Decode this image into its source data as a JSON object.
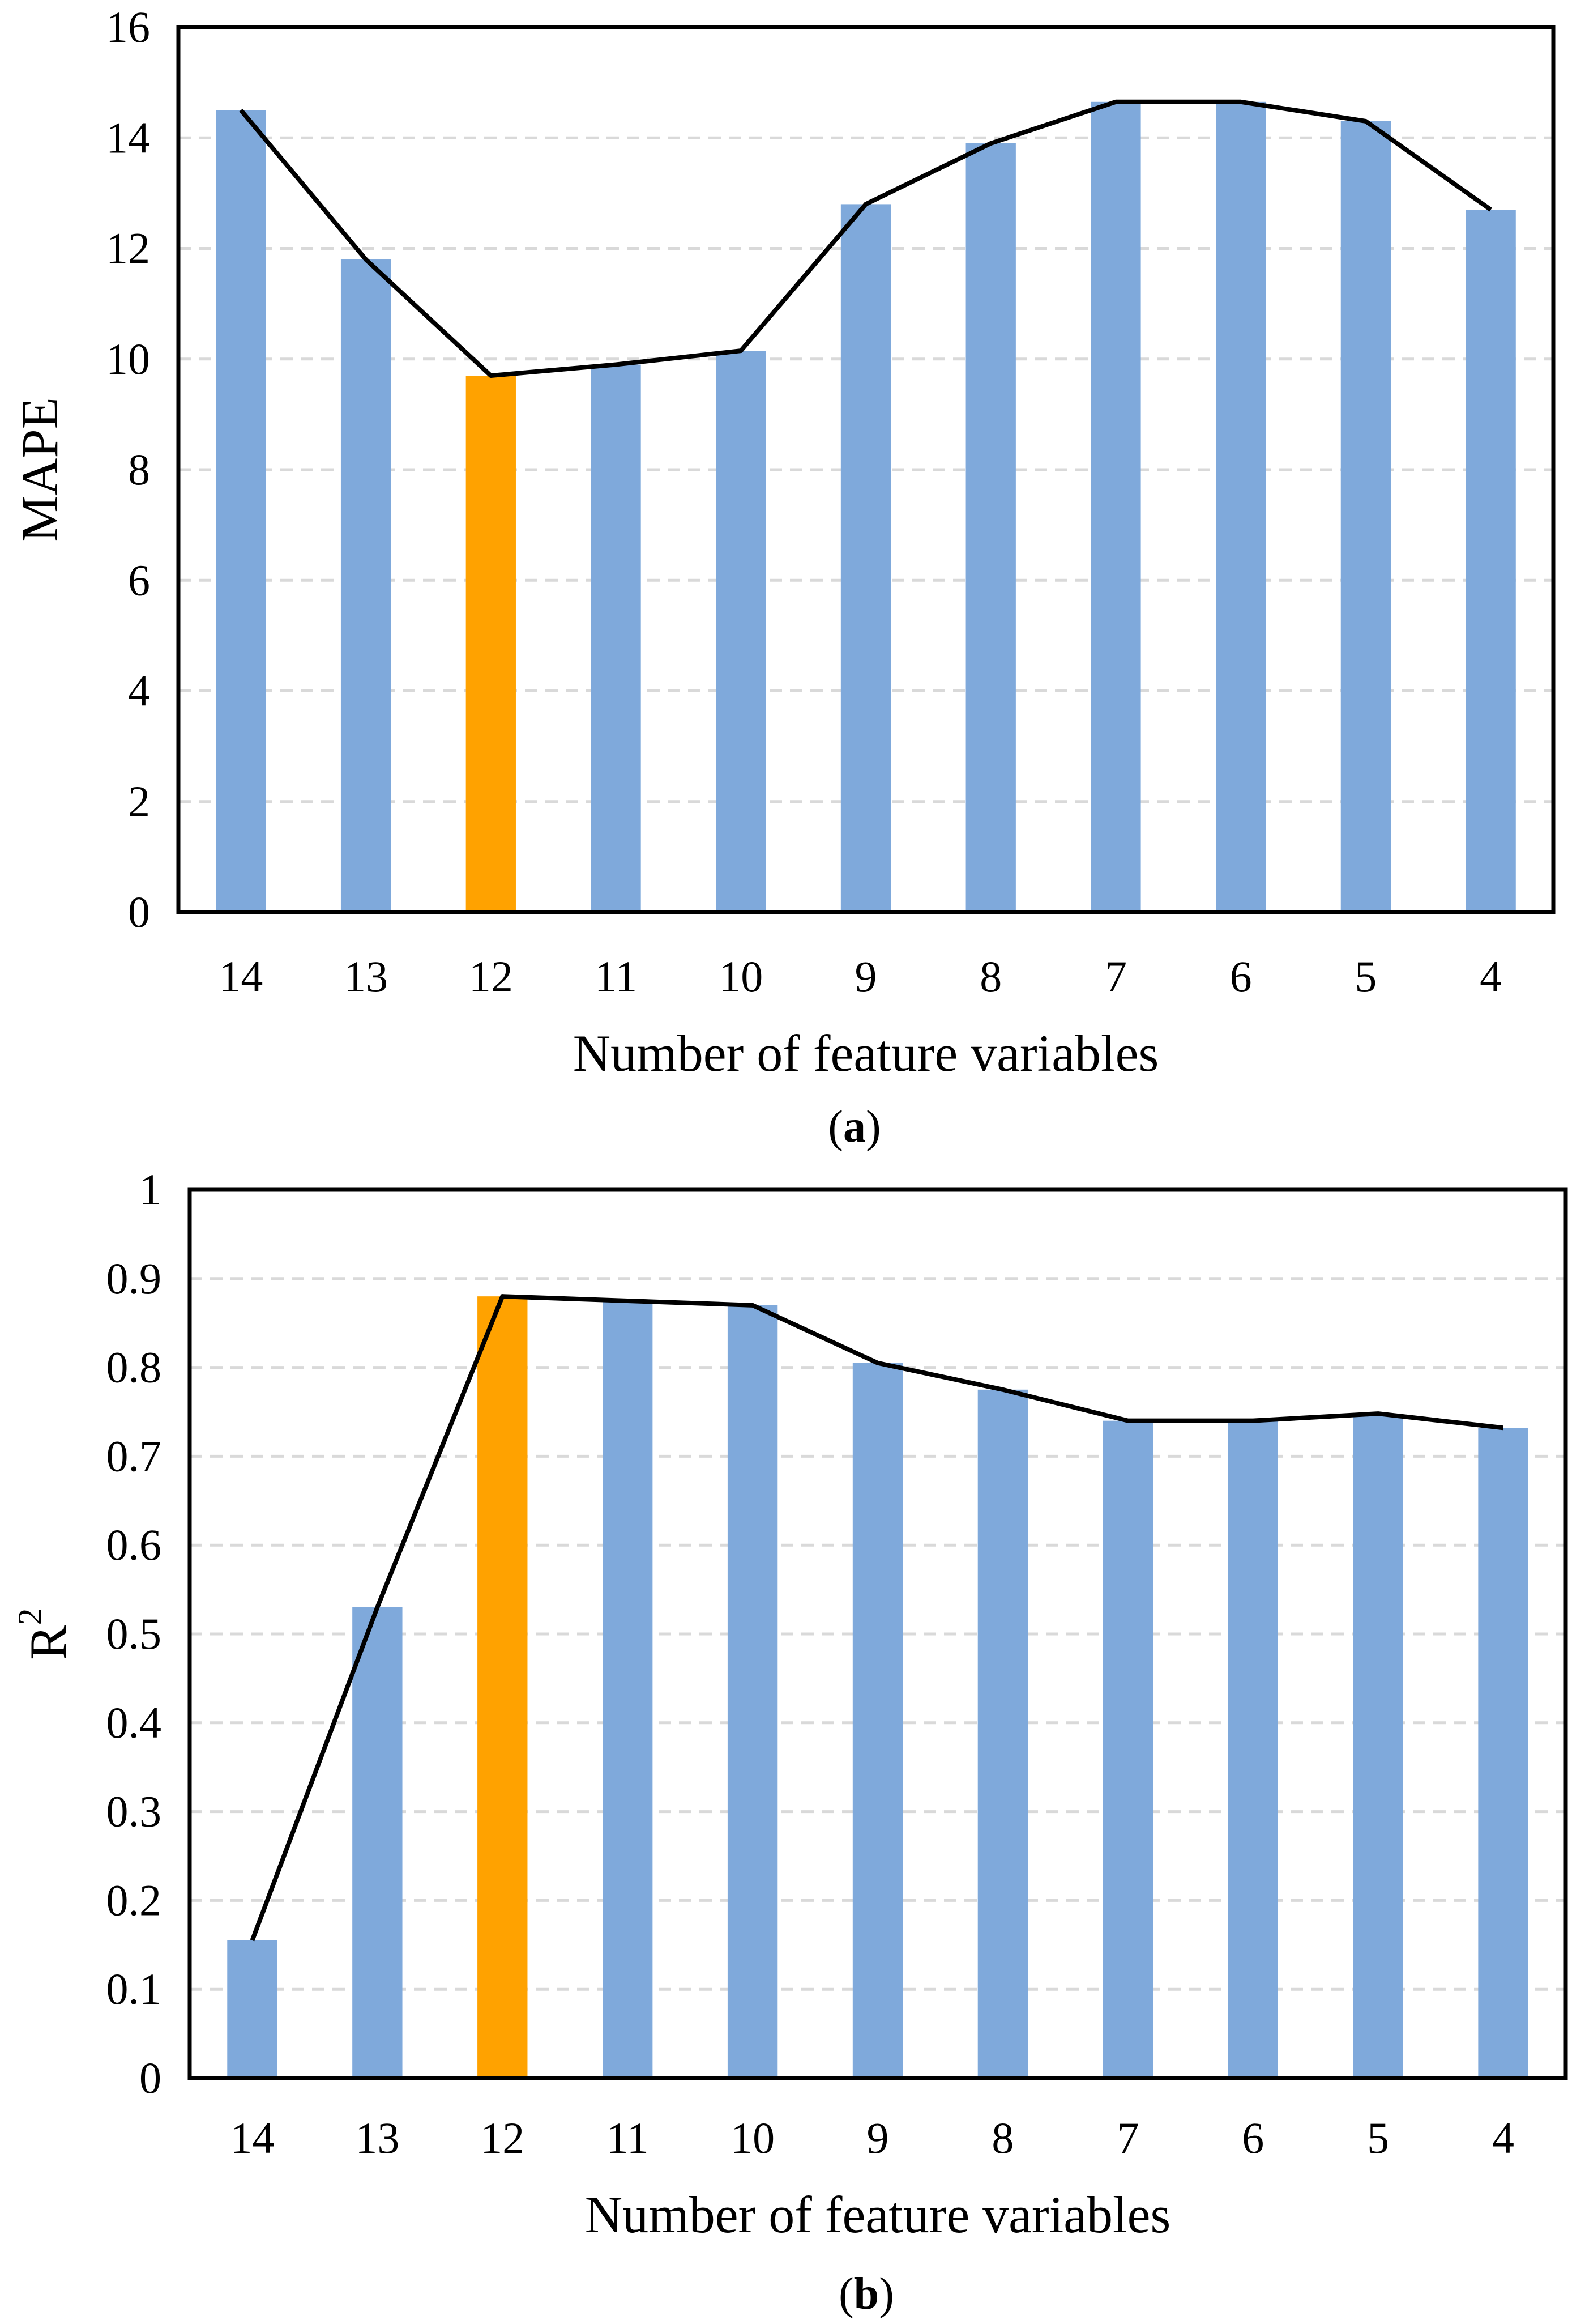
{
  "colors": {
    "bar": "#7FA9DB",
    "highlight": "#FFA200",
    "line": "#000000",
    "gridline": "#D9D9D9",
    "frame": "#000000"
  },
  "chart_data": [
    {
      "id": "a",
      "type": "bar",
      "overlay": "line",
      "caption": {
        "open": "(",
        "letter": "a",
        "close": ")"
      },
      "xlabel": "Number of feature variables",
      "ylabel": "MAPE",
      "ylim": [
        0,
        16
      ],
      "yticks": [
        0,
        2,
        4,
        6,
        8,
        10,
        12,
        14,
        16
      ],
      "ytick_labels": [
        "0",
        "2",
        "4",
        "6",
        "8",
        "10",
        "12",
        "14",
        "16"
      ],
      "categories": [
        "14",
        "13",
        "12",
        "11",
        "10",
        "9",
        "8",
        "7",
        "6",
        "5",
        "4"
      ],
      "values": [
        14.5,
        11.8,
        9.7,
        9.9,
        10.15,
        12.8,
        13.9,
        14.65,
        14.65,
        14.3,
        12.7
      ],
      "line_values": [
        14.5,
        11.8,
        9.7,
        9.9,
        10.15,
        12.8,
        13.9,
        14.65,
        14.65,
        14.3,
        12.7
      ],
      "highlight_category": "12",
      "grid": true
    },
    {
      "id": "b",
      "type": "bar",
      "overlay": "line",
      "caption": {
        "open": "(",
        "letter": "b",
        "close": ")"
      },
      "xlabel": "Number of feature variables",
      "ylabel": "R",
      "ylabel_superscript": "2",
      "ylim": [
        0,
        1
      ],
      "yticks": [
        0,
        0.1,
        0.2,
        0.3,
        0.4,
        0.5,
        0.6,
        0.7,
        0.8,
        0.9,
        1
      ],
      "ytick_labels": [
        "0",
        "0.1",
        "0.2",
        "0.3",
        "0.4",
        "0.5",
        "0.6",
        "0.7",
        "0.8",
        "0.9",
        "1"
      ],
      "categories": [
        "14",
        "13",
        "12",
        "11",
        "10",
        "9",
        "8",
        "7",
        "6",
        "5",
        "4"
      ],
      "values": [
        0.155,
        0.53,
        0.88,
        0.875,
        0.87,
        0.805,
        0.775,
        0.74,
        0.74,
        0.748,
        0.732
      ],
      "line_values": [
        0.155,
        0.53,
        0.88,
        0.875,
        0.87,
        0.805,
        0.775,
        0.74,
        0.74,
        0.748,
        0.732
      ],
      "highlight_category": "12",
      "grid": true
    }
  ]
}
